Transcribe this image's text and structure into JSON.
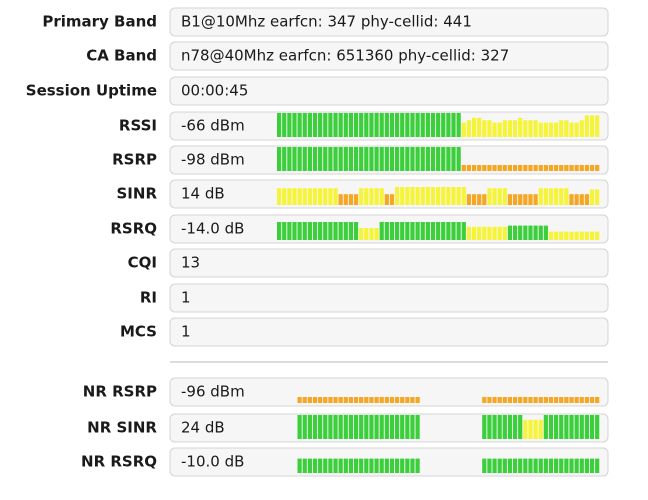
{
  "colors": {
    "green": "#3ccf3c",
    "yellow": "#f6f43a",
    "orange": "#f5a623"
  },
  "rows": [
    {
      "label": "Primary Band",
      "value": "B1@10Mhz earfcn: 347 phy-cellid: 441"
    },
    {
      "label": "CA Band",
      "value": "n78@40Mhz earfcn: 651360 phy-cellid: 327"
    },
    {
      "label": "Session Uptime",
      "value": "00:00:45"
    },
    {
      "label": "RSSI",
      "value": "-66 dBm",
      "history": [
        {
          "color": "green",
          "values": [
            100,
            100,
            100,
            100,
            100,
            100,
            100,
            100,
            100,
            100,
            100,
            100,
            100,
            100,
            100,
            100,
            100,
            100,
            100,
            100,
            100,
            100,
            100,
            100,
            100,
            100,
            100,
            100,
            100,
            100,
            100,
            100,
            100,
            100,
            100,
            100
          ]
        },
        {
          "color": "yellow",
          "values": [
            60,
            70,
            80,
            80,
            70,
            70,
            60,
            60,
            70,
            70,
            70,
            80,
            70,
            70,
            70,
            60,
            60,
            60,
            60,
            70,
            70,
            60,
            60,
            70,
            90,
            90,
            90
          ]
        }
      ]
    },
    {
      "label": "RSRP",
      "value": "-98 dBm",
      "history": [
        {
          "color": "green",
          "values": [
            100,
            100,
            100,
            100,
            100,
            100,
            100,
            100,
            100,
            100,
            100,
            100,
            100,
            100,
            100,
            100,
            100,
            100,
            100,
            100,
            100,
            100,
            100,
            100,
            100,
            100,
            100,
            100,
            100,
            100,
            100,
            100,
            100,
            100,
            100,
            100
          ]
        },
        {
          "color": "orange",
          "values": [
            25,
            25,
            25,
            25,
            25,
            25,
            25,
            25,
            25,
            25,
            25,
            25,
            25,
            25,
            25,
            25,
            25,
            25,
            25,
            25,
            25,
            25,
            25,
            25,
            25,
            25,
            25
          ]
        }
      ]
    },
    {
      "label": "SINR",
      "value": "14 dB",
      "history": [
        {
          "color": "yellow",
          "values": [
            70,
            70,
            70,
            70,
            70,
            70,
            70,
            70,
            70,
            70,
            70,
            70
          ]
        },
        {
          "color": "orange",
          "values": [
            45,
            45,
            45,
            45
          ]
        },
        {
          "color": "yellow",
          "values": [
            70,
            70,
            70,
            70,
            70
          ]
        },
        {
          "color": "orange",
          "values": [
            45,
            45
          ]
        },
        {
          "color": "yellow",
          "values": [
            75,
            75,
            75,
            75,
            75,
            75,
            75,
            75,
            75,
            75,
            75,
            75,
            75,
            75
          ]
        },
        {
          "color": "orange",
          "values": [
            45,
            45,
            45,
            45
          ]
        },
        {
          "color": "yellow",
          "values": [
            70,
            70,
            70,
            70
          ]
        },
        {
          "color": "orange",
          "values": [
            45,
            45,
            45,
            45,
            45,
            45
          ]
        },
        {
          "color": "yellow",
          "values": [
            70,
            70,
            70,
            70,
            70,
            70
          ]
        },
        {
          "color": "orange",
          "values": [
            45,
            45,
            45,
            45
          ]
        },
        {
          "color": "yellow",
          "values": [
            65,
            65
          ]
        }
      ]
    },
    {
      "label": "RSRQ",
      "value": "-14.0 dB",
      "history": [
        {
          "color": "green",
          "values": [
            75,
            75,
            75,
            75,
            75,
            75,
            75,
            75,
            75,
            75,
            75,
            75,
            75,
            75,
            75,
            75
          ]
        },
        {
          "color": "yellow",
          "values": [
            50,
            50,
            50,
            50
          ]
        },
        {
          "color": "green",
          "values": [
            75,
            75,
            75,
            75,
            75,
            75,
            75,
            75,
            75,
            75,
            75,
            75,
            75,
            75,
            75,
            75,
            75
          ]
        },
        {
          "color": "yellow",
          "values": [
            55,
            55,
            55,
            55,
            55,
            55,
            55,
            55
          ]
        },
        {
          "color": "green",
          "values": [
            60,
            60,
            60,
            60,
            60,
            60,
            60,
            60
          ]
        },
        {
          "color": "yellow",
          "values": [
            35,
            35,
            35,
            35,
            35,
            35,
            35,
            35,
            35,
            35
          ]
        }
      ]
    },
    {
      "label": "CQI",
      "value": "13"
    },
    {
      "label": "RI",
      "value": "1"
    },
    {
      "label": "MCS",
      "value": "1"
    }
  ],
  "nr_rows": [
    {
      "label": "NR RSRP",
      "value": "-96 dBm",
      "history": [
        {
          "color": "orange",
          "values": [
            null,
            null,
            null,
            null,
            25,
            25,
            25,
            25,
            25,
            25,
            25,
            25,
            25,
            25,
            25,
            25,
            25,
            25,
            25,
            25,
            25,
            25,
            25,
            25,
            25,
            25,
            25,
            25,
            null,
            null,
            null,
            null,
            null,
            null,
            null,
            null,
            null,
            null,
            null,
            null,
            25,
            25,
            25,
            25,
            25,
            25,
            25,
            25,
            25,
            25,
            25,
            25,
            25,
            25,
            25,
            25,
            25,
            25,
            25,
            25,
            25,
            25,
            25
          ]
        }
      ]
    },
    {
      "label": "NR SINR",
      "value": "24 dB",
      "history": [
        {
          "color": "green",
          "values": [
            null,
            null,
            null,
            null,
            100,
            100,
            100,
            100,
            100,
            100,
            100,
            100,
            100,
            100,
            100,
            100,
            100,
            100,
            100,
            100,
            100,
            100,
            100,
            100,
            100,
            100,
            100,
            100,
            null,
            null,
            null,
            null,
            null,
            null,
            null,
            null,
            null,
            null,
            null,
            null,
            100,
            100,
            100,
            100,
            100,
            100,
            100,
            100
          ]
        },
        {
          "color": "yellow",
          "values": [
            80,
            80,
            80,
            80
          ]
        },
        {
          "color": "green",
          "values": [
            100,
            100,
            100,
            100,
            100,
            100,
            100,
            100,
            100,
            100,
            100
          ]
        }
      ]
    },
    {
      "label": "NR RSRQ",
      "value": "-10.0 dB",
      "history": [
        {
          "color": "green",
          "values": [
            null,
            null,
            null,
            null,
            60,
            60,
            60,
            60,
            60,
            60,
            60,
            60,
            60,
            60,
            60,
            60,
            60,
            60,
            60,
            60,
            60,
            60,
            60,
            60,
            60,
            60,
            60,
            60,
            null,
            null,
            null,
            null,
            null,
            null,
            null,
            null,
            null,
            null,
            null,
            null,
            60,
            60,
            60,
            60,
            60,
            60,
            60,
            60,
            60,
            60,
            60,
            60,
            60,
            60,
            60,
            60,
            60,
            60,
            60,
            60,
            60,
            60,
            60
          ]
        }
      ]
    }
  ]
}
